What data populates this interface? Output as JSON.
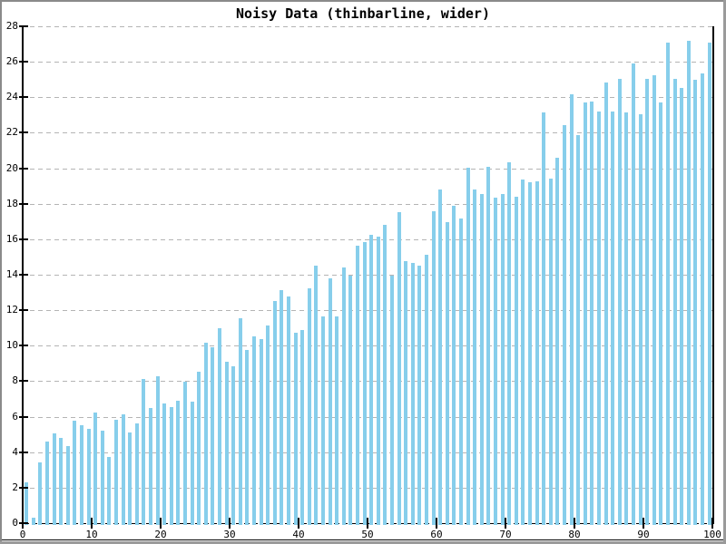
{
  "chart_data": {
    "type": "bar",
    "title": "Noisy Data (thinbarline, wider)",
    "xlabel": "",
    "ylabel": "",
    "xlim": [
      0,
      100
    ],
    "ylim": [
      0,
      28
    ],
    "x_ticks": [
      0,
      10,
      20,
      30,
      40,
      50,
      60,
      70,
      80,
      90,
      100
    ],
    "y_ticks": [
      0,
      2,
      4,
      6,
      8,
      10,
      12,
      14,
      16,
      18,
      20,
      22,
      24,
      26,
      28
    ],
    "bar_x_start": 0.55,
    "bar_x_step": 1,
    "values": [
      2.32,
      0.33,
      3.42,
      4.58,
      5.04,
      4.82,
      4.33,
      5.77,
      5.5,
      5.33,
      6.23,
      5.21,
      3.73,
      5.81,
      6.15,
      5.13,
      5.64,
      8.14,
      6.49,
      8.26,
      6.76,
      6.52,
      6.9,
      7.97,
      6.85,
      8.53,
      10.19,
      9.93,
      10.97,
      9.1,
      8.84,
      11.57,
      9.76,
      10.54,
      10.39,
      11.12,
      12.54,
      13.13,
      12.78,
      10.75,
      10.9,
      13.24,
      14.53,
      11.67,
      13.82,
      11.67,
      14.43,
      13.95,
      15.65,
      15.86,
      16.23,
      16.13,
      16.8,
      13.94,
      17.53,
      14.75,
      14.65,
      14.5,
      15.1,
      17.6,
      18.8,
      16.95,
      17.9,
      17.19,
      20.03,
      18.79,
      18.57,
      20.09,
      18.36,
      18.53,
      20.32,
      18.38,
      19.35,
      19.2,
      19.25,
      23.15,
      19.44,
      20.58,
      22.42,
      24.18,
      21.86,
      23.7,
      23.75,
      23.19,
      24.84,
      23.22,
      25.06,
      23.13,
      25.91,
      23.05,
      25.06,
      25.23,
      23.7,
      27.1,
      25.06,
      24.51,
      27.16,
      25.01,
      25.36,
      27.07
    ],
    "grid": "dashed horizontal gridlines at every y tick; y=0 baseline dashed black",
    "legend": "none",
    "colors": {
      "bar": "#87CEEB",
      "grid": "#b4b4b4",
      "axis": "#000000",
      "background": "#ffffff",
      "frame": "#8a8a8a"
    }
  }
}
